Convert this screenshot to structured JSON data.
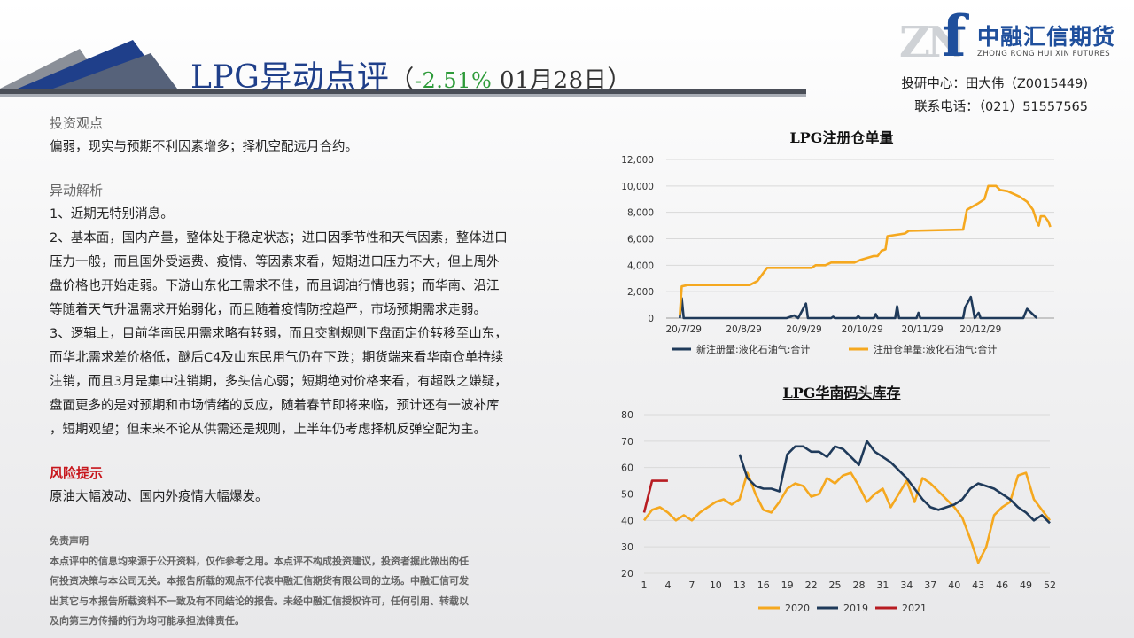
{
  "header": {
    "title": "LPG异动点评",
    "paren_open": "（",
    "change": "-2.51%",
    "date": " 01月28日",
    "paren_close": "）"
  },
  "logo": {
    "mark": "ZN",
    "letter": "f",
    "cn": "中融汇信期货",
    "en": "ZHONG RONG HUI XIN FUTURES"
  },
  "contact": {
    "line1": "投研中心：田大伟（Z0015449)",
    "line2": "联系电话：（021）51557565"
  },
  "view": {
    "heading": "投资观点",
    "text": "偏弱，现实与预期不利因素增多；择机空配远月合约。"
  },
  "analysis": {
    "heading": "异动解析",
    "lines": [
      "1、近期无特别消息。",
      "2、基本面，国内产量，整体处于稳定状态；进口因季节性和天气因素，整体进口",
      "压力一般，而且国外受运费、疫情、等因素来看，短期进口压力不大，但上周外",
      "盘价格也开始走弱。下游山东化工需求不佳，而且调油行情也弱；而华南、沿江",
      "等随着天气升温需求开始弱化，而且随着疫情防控趋严，市场预期需求走弱。",
      "3、逻辑上，目前华南民用需求略有转弱，而且交割规则下盘面定价转移至山东，",
      "而华北需求差价格低，醚后C4及山东民用气仍在下跌；期货端来看华南仓单持续",
      "注销，而且3月是集中注销期，多头信心弱；短期绝对价格来看，有超跌之嫌疑，",
      "盘面更多的是对预期和市场情绪的反应，随着春节即将来临，预计还有一波补库",
      "，短期观望；但未来不论从供需还是规则，上半年仍考虑择机反弹空配为主。"
    ]
  },
  "risk": {
    "heading": "风险提示",
    "text": "原油大幅波动、国内外疫情大幅爆发。"
  },
  "disclaimer": {
    "heading": "免责声明",
    "lines": [
      "本点评中的信息均来源于公开资料，仅作参考之用。本点评不构成投资建议，投资者据此做出的任",
      "何投资决策与本公司无关。本报告所载的观点不代表中融汇信期货有限公司的立场。中融汇信可发",
      "出其它与本报告所载资料不一致及有不同结论的报告。未经中融汇信授权许可，任何引用、转载以",
      "及向第三方传播的行为均可能承担法律责任。"
    ]
  },
  "colors": {
    "navy": "#1f3a5a",
    "orange": "#f5a81f",
    "red": "#b81c22",
    "title_blue": "#1f3f8a",
    "change_green": "#2e9b3a"
  },
  "chart_data": [
    {
      "type": "line",
      "title": "LPG注册仓单量",
      "x_ticks": [
        "20/7/29",
        "20/8/29",
        "20/9/29",
        "20/10/29",
        "20/11/29",
        "20/12/29"
      ],
      "ylim": [
        0,
        12000
      ],
      "y_ticks": [
        "0",
        "2,000",
        "4,000",
        "6,000",
        "8,000",
        "10,000",
        "12,000"
      ],
      "legend_position": "bottom",
      "series": [
        {
          "name": "新注册量:液化石油气:合计",
          "points": [
            [
              "2020-07-27",
              0
            ],
            [
              "2020-07-28",
              1500
            ],
            [
              "2020-07-29",
              0
            ],
            [
              "2020-08-01",
              0
            ],
            [
              "2020-09-20",
              0
            ],
            [
              "2020-09-24",
              200
            ],
            [
              "2020-09-26",
              0
            ],
            [
              "2020-09-30",
              1100
            ],
            [
              "2020-10-01",
              0
            ],
            [
              "2020-10-13",
              0
            ],
            [
              "2020-10-14",
              100
            ],
            [
              "2020-10-15",
              0
            ],
            [
              "2020-10-26",
              0
            ],
            [
              "2020-10-27",
              150
            ],
            [
              "2020-10-28",
              0
            ],
            [
              "2020-11-04",
              0
            ],
            [
              "2020-11-05",
              300
            ],
            [
              "2020-11-06",
              0
            ],
            [
              "2020-11-15",
              0
            ],
            [
              "2020-11-16",
              900
            ],
            [
              "2020-11-17",
              0
            ],
            [
              "2020-11-26",
              0
            ],
            [
              "2020-11-27",
              400
            ],
            [
              "2020-11-28",
              0
            ],
            [
              "2020-12-20",
              0
            ],
            [
              "2020-12-21",
              800
            ],
            [
              "2020-12-24",
              1600
            ],
            [
              "2020-12-26",
              0
            ],
            [
              "2020-12-28",
              400
            ],
            [
              "2020-12-29",
              0
            ],
            [
              "2021-01-20",
              0
            ],
            [
              "2021-01-22",
              700
            ],
            [
              "2021-01-27",
              0
            ]
          ]
        },
        {
          "name": "注册仓单量:液化石油气:合计",
          "points": [
            [
              "2020-07-27",
              200
            ],
            [
              "2020-07-28",
              2400
            ],
            [
              "2020-07-31",
              2500
            ],
            [
              "2020-09-01",
              2500
            ],
            [
              "2020-09-05",
              2800
            ],
            [
              "2020-09-10",
              3800
            ],
            [
              "2020-10-03",
              3800
            ],
            [
              "2020-10-05",
              4000
            ],
            [
              "2020-10-10",
              4000
            ],
            [
              "2020-10-13",
              4200
            ],
            [
              "2020-10-25",
              4200
            ],
            [
              "2020-10-28",
              4400
            ],
            [
              "2020-11-04",
              4700
            ],
            [
              "2020-11-06",
              4700
            ],
            [
              "2020-11-08",
              5100
            ],
            [
              "2020-11-10",
              5200
            ],
            [
              "2020-11-11",
              6200
            ],
            [
              "2020-11-20",
              6400
            ],
            [
              "2020-11-22",
              6600
            ],
            [
              "2020-12-20",
              6700
            ],
            [
              "2020-12-22",
              8200
            ],
            [
              "2020-12-28",
              8700
            ],
            [
              "2020-12-31",
              9000
            ],
            [
              "2021-01-02",
              10000
            ],
            [
              "2021-01-06",
              10000
            ],
            [
              "2021-01-08",
              9700
            ],
            [
              "2021-01-12",
              9600
            ],
            [
              "2021-01-18",
              9200
            ],
            [
              "2021-01-22",
              8800
            ],
            [
              "2021-01-25",
              8200
            ],
            [
              "2021-01-27",
              7300
            ],
            [
              "2021-01-28",
              7000
            ],
            [
              "2021-01-29",
              7700
            ],
            [
              "2021-01-31",
              7700
            ],
            [
              "2021-02-02",
              7300
            ],
            [
              "2021-02-03",
              6900
            ]
          ]
        }
      ]
    },
    {
      "type": "line",
      "title": "LPG华南码头库存",
      "x_ticks": [
        "1",
        "4",
        "7",
        "10",
        "13",
        "16",
        "19",
        "22",
        "25",
        "28",
        "31",
        "34",
        "37",
        "40",
        "43",
        "46",
        "49",
        "52"
      ],
      "ylim": [
        20,
        80
      ],
      "y_ticks": [
        "20",
        "30",
        "40",
        "50",
        "60",
        "70",
        "80"
      ],
      "legend_position": "bottom",
      "series": [
        {
          "name": "2020",
          "x": [
            1,
            2,
            3,
            4,
            5,
            6,
            7,
            8,
            9,
            10,
            11,
            12,
            13,
            14,
            15,
            16,
            17,
            18,
            19,
            20,
            21,
            22,
            23,
            24,
            25,
            26,
            27,
            28,
            29,
            30,
            31,
            32,
            33,
            34,
            35,
            36,
            37,
            38,
            39,
            40,
            41,
            42,
            43,
            44,
            45,
            46,
            47,
            48,
            49,
            50,
            51,
            52
          ],
          "values": [
            40,
            44,
            45,
            43,
            40,
            42,
            40,
            43,
            45,
            47,
            48,
            46,
            48,
            58,
            50,
            44,
            43,
            47,
            52,
            54,
            53,
            49,
            50,
            56,
            54,
            57,
            58,
            53,
            47,
            50,
            52,
            45,
            50,
            55,
            47,
            56,
            54,
            51,
            48,
            45,
            41,
            33,
            24,
            30,
            42,
            45,
            47,
            57,
            58,
            48,
            44,
            40
          ]
        },
        {
          "name": "2019",
          "x": [
            13,
            14,
            15,
            16,
            17,
            18,
            19,
            20,
            21,
            22,
            23,
            24,
            25,
            26,
            27,
            28,
            29,
            30,
            31,
            32,
            33,
            34,
            35,
            36,
            37,
            38,
            39,
            40,
            41,
            42,
            43,
            44,
            45,
            46,
            47,
            48,
            49,
            50,
            51,
            52
          ],
          "values": [
            65,
            56,
            53,
            52,
            52,
            51,
            65,
            68,
            68,
            66,
            66,
            64,
            68,
            67,
            64,
            61,
            70,
            66,
            64,
            62,
            59,
            56,
            52,
            48,
            45,
            44,
            45,
            46,
            48,
            52,
            54,
            53,
            52,
            50,
            48,
            45,
            43,
            40,
            42,
            39
          ]
        },
        {
          "name": "2021",
          "x": [
            1,
            2,
            3,
            4
          ],
          "values": [
            43,
            55,
            55,
            55
          ]
        }
      ]
    }
  ]
}
